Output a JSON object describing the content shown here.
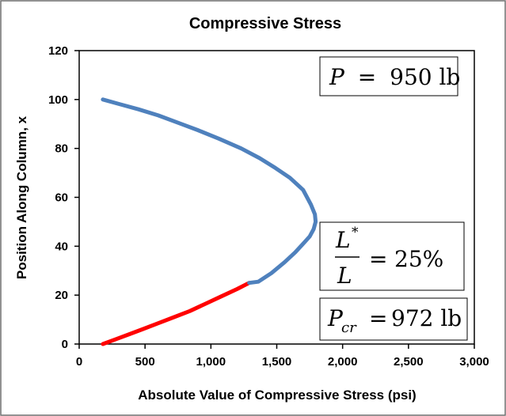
{
  "chart_data": {
    "type": "line",
    "title": "Compressive Stress",
    "xlabel": "Absolute Value of Compressive Stress (psi)",
    "ylabel": "Position Along Column, x",
    "xlim": [
      0,
      3000
    ],
    "ylim": [
      0,
      120
    ],
    "x_ticks": [
      0,
      500,
      1000,
      1500,
      2000,
      2500,
      3000
    ],
    "x_tick_labels": [
      "0",
      "500",
      "1,000",
      "1,500",
      "2,000",
      "2,500",
      "3,000"
    ],
    "y_ticks": [
      0,
      20,
      40,
      60,
      80,
      100,
      120
    ],
    "y_tick_labels": [
      "0",
      "20",
      "40",
      "60",
      "80",
      "100",
      "120"
    ],
    "grid": false,
    "colors": {
      "lower_segment": "#ff0000",
      "upper_segment": "#4f81bd"
    },
    "series": [
      {
        "color": "#ff0000",
        "points": [
          [
            180,
            0
          ],
          [
            280,
            2
          ],
          [
            380,
            4
          ],
          [
            480,
            6
          ],
          [
            600,
            8.5
          ],
          [
            720,
            11
          ],
          [
            840,
            13.5
          ],
          [
            960,
            16.5
          ],
          [
            1080,
            19.5
          ],
          [
            1200,
            22.5
          ],
          [
            1290,
            25
          ]
        ]
      },
      {
        "color": "#4f81bd",
        "points": [
          [
            1290,
            25
          ],
          [
            1360,
            25.5
          ],
          [
            1460,
            29
          ],
          [
            1560,
            33.5
          ],
          [
            1640,
            37.5
          ],
          [
            1700,
            41
          ],
          [
            1750,
            44
          ],
          [
            1780,
            47
          ],
          [
            1795,
            50
          ],
          [
            1790,
            53
          ],
          [
            1760,
            57
          ],
          [
            1700,
            63
          ],
          [
            1600,
            68
          ],
          [
            1490,
            72
          ],
          [
            1370,
            76
          ],
          [
            1230,
            80
          ],
          [
            1060,
            84
          ],
          [
            900,
            87.5
          ],
          [
            750,
            90.5
          ],
          [
            600,
            93.5
          ],
          [
            450,
            96
          ],
          [
            300,
            98.2
          ],
          [
            180,
            100
          ]
        ]
      }
    ]
  },
  "annotations": {
    "load": {
      "symbol": "P",
      "equals": "=",
      "value": "950 lb"
    },
    "ratio": {
      "numerator": "L",
      "star": "*",
      "denominator": "L",
      "equals": "=",
      "value": "25%"
    },
    "critical": {
      "symbol": "P",
      "subscript": "cr",
      "equals": "=",
      "value": "972 lb"
    }
  }
}
